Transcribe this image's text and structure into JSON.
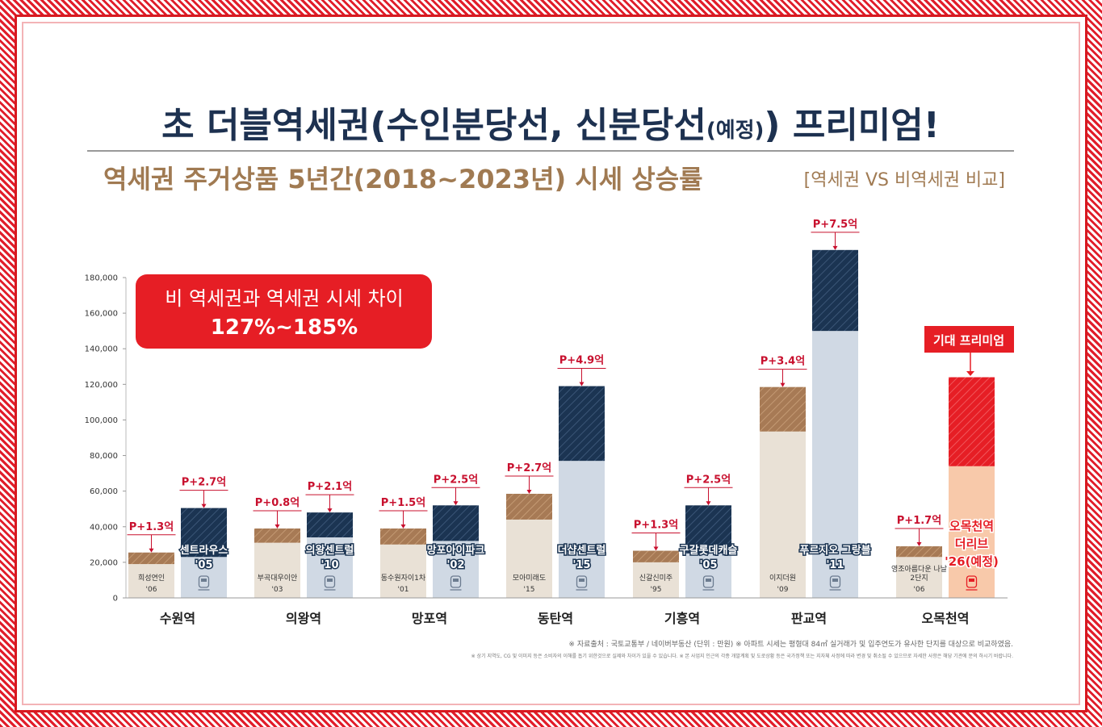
{
  "title": "초 더블역세권(수인분당선, 신분당선(예정)) 프리미엄!",
  "title_main": "초 더블역세권(수인분당선, 신분당선",
  "title_small": "(예정)",
  "title_tail": ") 프리미엄!",
  "subtitle": "역세권 주거상품 5년간(2018~2023년) 시세 상승률",
  "subtitle_note": "[역세권 VS 비역세권 비교]",
  "callout": {
    "line1": "비 역세권과 역세권 시세 차이",
    "line2": "127%~185%"
  },
  "expected_premium_label": "기대 프리미엄",
  "sources": {
    "line1": "※ 자료출처 : 국토교통부 / 네이버부동산 (단위 : 만원)  ※ 아파트 시세는 평형대 84㎡ 실거래가 및 입주연도가 유사한 단지를 대상으로 비교하였음.",
    "line2": "※ 상기 지역도, CG 및 이미지 등은 소비자의 이해를 돕기 위한것으로 실제와 차이가 있을 수 있습니다.  ※ 본 사업지 인근의 각종 개발계획 및 도로상황 등은 국가정책 또는 지자체 사정에 따라 변경 및 취소될 수 있으므로 자세한 사항은 해당 기관에 문의 하시기 바랍니다."
  },
  "colors": {
    "navy": "#1b3452",
    "light_blue": "#d0d9e4",
    "beige": "#e9e1d6",
    "brown": "#a77a55",
    "red": "#e61e25",
    "peach": "#f8c9aa",
    "label_red": "#c8102e",
    "title": "#1d3150",
    "subtitle": "#a07a52"
  },
  "chart_data": {
    "type": "bar",
    "ylabel": "",
    "ylim": [
      0,
      180000
    ],
    "yticks": [
      "0",
      "20,000",
      "40,000",
      "60,000",
      "80,000",
      "100,000",
      "120,000",
      "140,000",
      "160,000",
      "180,000"
    ],
    "categories": [
      "수원역",
      "의왕역",
      "망포역",
      "동탄역",
      "기흥역",
      "판교역",
      "오목천역"
    ],
    "groups": [
      {
        "station": "수원역",
        "non_station": {
          "name": "희성연인",
          "year": "'06",
          "base": 19000,
          "total": 25500,
          "premium_label": "P+1.3억"
        },
        "station_area": {
          "name": "센트라우스",
          "year": "'05",
          "base": 23000,
          "total": 50500,
          "premium_label": "P+2.7억"
        }
      },
      {
        "station": "의왕역",
        "non_station": {
          "name": "부곡대우이안",
          "year": "'03",
          "base": 31000,
          "total": 39000,
          "premium_label": "P+0.8억"
        },
        "station_area": {
          "name": "의왕센트럴",
          "year": "'10",
          "base": 34000,
          "total": 48000,
          "premium_label": "P+2.1억"
        }
      },
      {
        "station": "망포역",
        "non_station": {
          "name": "동수원자이1차",
          "year": "'01",
          "base": 30000,
          "total": 39000,
          "premium_label": "P+1.5억"
        },
        "station_area": {
          "name": "망포아이파크",
          "year": "'02",
          "base": 32000,
          "total": 52000,
          "premium_label": "P+2.5억"
        }
      },
      {
        "station": "동탄역",
        "non_station": {
          "name": "모아미래도",
          "year": "'15",
          "base": 44000,
          "total": 58500,
          "premium_label": "P+2.7억"
        },
        "station_area": {
          "name": "더샵센트럴",
          "year": "'15",
          "base": 77000,
          "total": 119000,
          "premium_label": "P+4.9억"
        }
      },
      {
        "station": "기흥역",
        "non_station": {
          "name": "신갈신미주",
          "year": "'95",
          "base": 20000,
          "total": 26500,
          "premium_label": "P+1.3억"
        },
        "station_area": {
          "name": "구갈롯데캐슬",
          "year": "'05",
          "base": 25000,
          "total": 52000,
          "premium_label": "P+2.5억"
        }
      },
      {
        "station": "판교역",
        "non_station": {
          "name": "이지더원",
          "year": "'09",
          "base": 93500,
          "total": 118500,
          "premium_label": "P+3.4억"
        },
        "station_area": {
          "name": "푸르지오 그랑블",
          "year": "'11",
          "base": 150000,
          "total": 195500,
          "premium_label": "P+7.5억"
        }
      },
      {
        "station": "오목천역",
        "non_station": {
          "name": "영조아름다운 나날 2단지",
          "year": "'06",
          "base": 23000,
          "total": 29000,
          "premium_label": "P+1.7억"
        },
        "station_area": {
          "name": "오목천역 더리브",
          "year": "'26(예정)",
          "base": 74000,
          "total": 124000,
          "premium_label": ""
        }
      }
    ]
  }
}
